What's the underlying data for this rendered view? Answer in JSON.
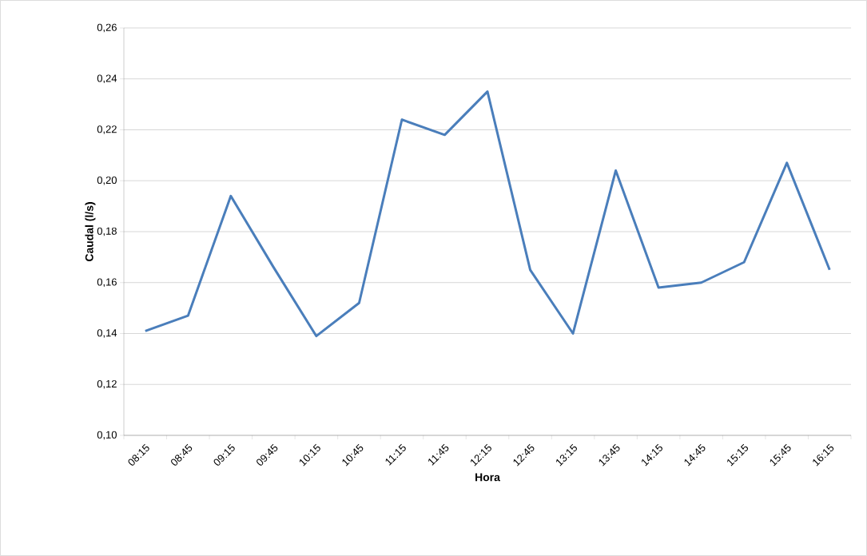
{
  "chart_data": {
    "type": "line",
    "xlabel": "Hora",
    "ylabel": "Caudal (l/s)",
    "categories": [
      "08:15",
      "08:45",
      "09:15",
      "09:45",
      "10:15",
      "10:45",
      "11:15",
      "11:45",
      "12:15",
      "12:45",
      "13:15",
      "13:45",
      "14:15",
      "14:45",
      "15:15",
      "15:45",
      "16:15"
    ],
    "series": [
      {
        "color": "#4a7ebb",
        "values": [
          0.141,
          0.147,
          0.194,
          0.166,
          0.139,
          0.152,
          0.224,
          0.218,
          0.235,
          0.165,
          0.14,
          0.204,
          0.158,
          0.16,
          0.168,
          0.207,
          0.165
        ]
      }
    ],
    "ylim": [
      0.1,
      0.26
    ],
    "yticks": [
      {
        "value": 0.1,
        "label": "0,10"
      },
      {
        "value": 0.12,
        "label": "0,12"
      },
      {
        "value": 0.14,
        "label": "0,14"
      },
      {
        "value": 0.16,
        "label": "0,16"
      },
      {
        "value": 0.18,
        "label": "0,18"
      },
      {
        "value": 0.2,
        "label": "0,20"
      },
      {
        "value": 0.22,
        "label": "0,22"
      },
      {
        "value": 0.24,
        "label": "0,24"
      },
      {
        "value": 0.26,
        "label": "0,26"
      }
    ],
    "grid": "y",
    "marker": "none",
    "line_style": "solid"
  }
}
